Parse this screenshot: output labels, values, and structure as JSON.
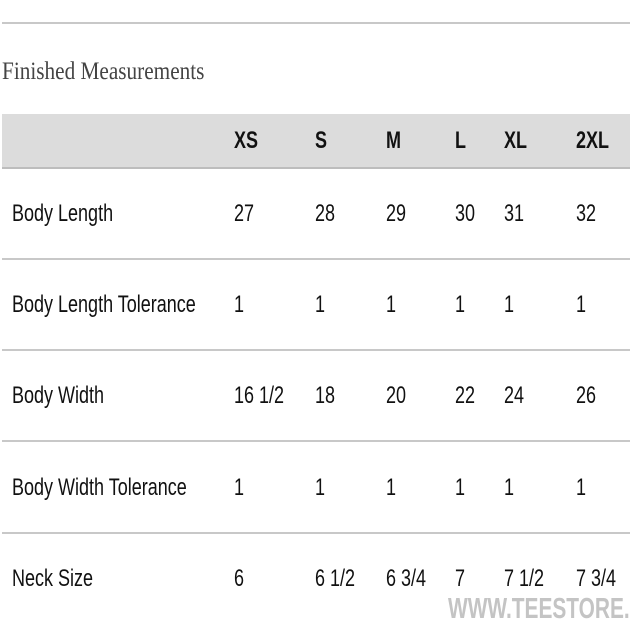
{
  "title": "Finished Measurements",
  "sizes": [
    "XS",
    "S",
    "M",
    "L",
    "XL",
    "2XL"
  ],
  "rows": [
    {
      "label": "Body Length",
      "values": [
        "27",
        "28",
        "29",
        "30",
        "31",
        "32"
      ]
    },
    {
      "label": "Body Length Tolerance",
      "values": [
        "1",
        "1",
        "1",
        "1",
        "1",
        "1"
      ]
    },
    {
      "label": "Body Width",
      "values": [
        "16 1/2",
        "18",
        "20",
        "22",
        "24",
        "26"
      ]
    },
    {
      "label": "Body Width Tolerance",
      "values": [
        "1",
        "1",
        "1",
        "1",
        "1",
        "1"
      ]
    },
    {
      "label": "Neck Size",
      "values": [
        "6",
        "6 1/2",
        "6 3/4",
        "7",
        "7 1/2",
        "7 3/4"
      ]
    }
  ],
  "watermark": "WWW.TEESTORE.IO"
}
